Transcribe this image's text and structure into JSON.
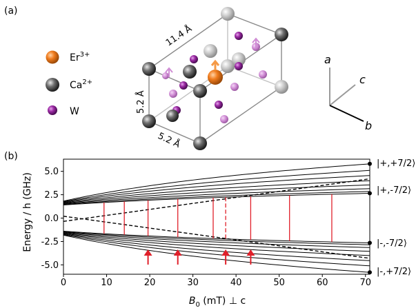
{
  "panel_a": {
    "label": "(a)",
    "legend": [
      {
        "ion": "Er",
        "charge": "3+",
        "color": "#f07c1e"
      },
      {
        "ion": "Ca",
        "charge": "2+",
        "color": "#6f6f6f"
      },
      {
        "ion": "W",
        "charge": "",
        "color": "#9b2aa4"
      }
    ],
    "dimensions": {
      "c": "11.4 Å",
      "a": "5.2 Å",
      "b": "5.2 Å"
    },
    "axes": {
      "a": "a",
      "b": "b",
      "c": "c"
    }
  },
  "panel_b": {
    "label": "(b)",
    "xlabel_sym": "B",
    "xlabel_sub": "0",
    "xlabel_rest": " (mT)  ⊥ c",
    "ylabel": "Energy / h (GHz)",
    "state_labels": [
      "|+,+7/2⟩",
      "|+,-7/2⟩",
      "|-,-7/2⟩",
      "|-,+7/2⟩"
    ]
  },
  "chart_data": {
    "type": "line",
    "xlabel": "B0 (mT) ⊥ c",
    "ylabel": "Energy / h (GHz)",
    "xlim": [
      0,
      71
    ],
    "ylim": [
      -6,
      6.3
    ],
    "xticks": [
      0,
      10,
      20,
      30,
      40,
      50,
      60,
      70
    ],
    "yticks": [
      -5.0,
      -2.5,
      0.0,
      2.5,
      5.0
    ],
    "upper_levels": {
      "start": [
        1.82,
        1.76,
        1.7,
        1.64,
        1.58,
        1.52,
        1.46,
        1.4
      ],
      "end": [
        5.8,
        5.1,
        4.55,
        4.0,
        3.55,
        3.15,
        2.85,
        2.65
      ]
    },
    "lower_levels": {
      "start": [
        -1.4,
        -1.46,
        -1.52,
        -1.58,
        -1.64,
        -1.7,
        -1.76,
        -1.82
      ],
      "end": [
        -2.65,
        -2.85,
        -3.15,
        -3.55,
        -4.0,
        -4.55,
        -5.1,
        -5.8
      ]
    },
    "dashed_lines": [
      {
        "x": [
          0,
          71
        ],
        "y": [
          -0.35,
          4.2
        ]
      },
      {
        "x": [
          0,
          71
        ],
        "y": [
          0.2,
          -4.3
        ]
      }
    ],
    "transitions_x": [
      9.4,
      14.1,
      19.6,
      26.5,
      34.7,
      37.6,
      43.4,
      52.4,
      62.2
    ],
    "dashed_transition_x": 37.6,
    "arrows_x": [
      19.6,
      26.5,
      37.6,
      43.4
    ],
    "marker_levels": [
      5.8,
      2.65,
      -2.65,
      -5.8
    ]
  }
}
